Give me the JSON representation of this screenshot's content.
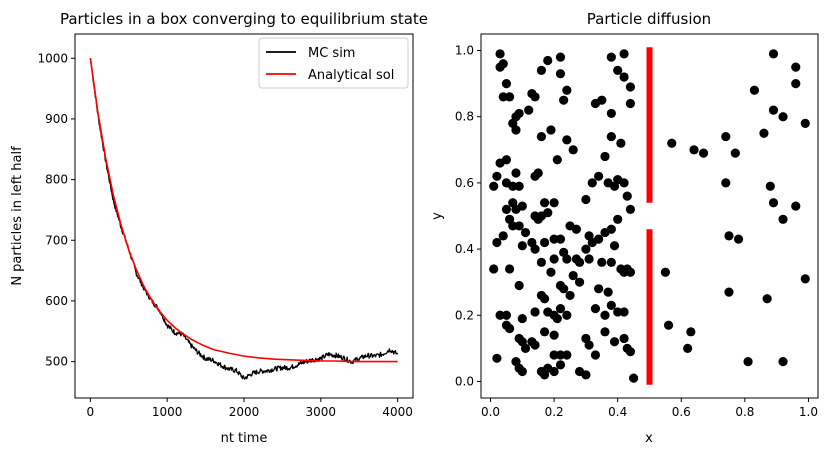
{
  "chart_data": [
    {
      "type": "line",
      "title": "Particles in a box converging to equilibrium state",
      "xlabel": "nt time",
      "ylabel": "N particles in left half",
      "xlim": [
        -200,
        4200
      ],
      "ylim": [
        440,
        1040
      ],
      "xticks": [
        0,
        1000,
        2000,
        3000,
        4000
      ],
      "yticks": [
        500,
        600,
        700,
        800,
        900,
        1000
      ],
      "xtick_labels": [
        "0",
        "1000",
        "2000",
        "3000",
        "4000"
      ],
      "ytick_labels": [
        "500",
        "600",
        "700",
        "800",
        "900",
        "1000"
      ],
      "legend_position": "top-right",
      "series": [
        {
          "name": "MC sim",
          "color": "#000000",
          "x": [
            0,
            100,
            200,
            300,
            400,
            500,
            600,
            700,
            800,
            900,
            1000,
            1100,
            1200,
            1300,
            1400,
            1500,
            1600,
            1700,
            1800,
            1900,
            2000,
            2100,
            2200,
            2300,
            2400,
            2500,
            2600,
            2700,
            2800,
            2900,
            3000,
            3100,
            3200,
            3300,
            3400,
            3500,
            3600,
            3700,
            3800,
            3900,
            4000
          ],
          "y": [
            1000,
            905,
            830,
            765,
            722,
            685,
            645,
            620,
            600,
            585,
            560,
            548,
            545,
            528,
            515,
            505,
            502,
            494,
            488,
            485,
            472,
            480,
            484,
            485,
            488,
            490,
            490,
            495,
            500,
            503,
            505,
            512,
            510,
            506,
            500,
            505,
            510,
            509,
            512,
            520,
            512
          ]
        },
        {
          "name": "Analytical sol",
          "color": "#ff0000",
          "x": [
            0,
            100,
            200,
            300,
            400,
            500,
            600,
            700,
            800,
            900,
            1000,
            1100,
            1200,
            1300,
            1400,
            1500,
            1600,
            1800,
            2000,
            2200,
            2400,
            2600,
            2800,
            3000,
            3200,
            3400,
            3600,
            3800,
            4000
          ],
          "y": [
            1000,
            909,
            835,
            774,
            725,
            684,
            651,
            623,
            601,
            583,
            568,
            556,
            546,
            538,
            531,
            525,
            520,
            514,
            509,
            506,
            504,
            503,
            502,
            501,
            501,
            500,
            500,
            500,
            500
          ]
        }
      ]
    },
    {
      "type": "scatter",
      "title": "Particle diffusion",
      "xlabel": "x",
      "ylabel": "y",
      "xlim": [
        -0.03,
        1.03
      ],
      "ylim": [
        -0.05,
        1.05
      ],
      "xticks": [
        0.0,
        0.2,
        0.4,
        0.6,
        0.8,
        1.0
      ],
      "yticks": [
        0.0,
        0.2,
        0.4,
        0.6,
        0.8,
        1.0
      ],
      "xtick_labels": [
        "0.0",
        "0.2",
        "0.4",
        "0.6",
        "0.8",
        "1.0"
      ],
      "ytick_labels": [
        "0.0",
        "0.2",
        "0.4",
        "0.6",
        "0.8",
        "1.0"
      ],
      "point_color": "#000000",
      "wall_color": "#ff0000",
      "walls": [
        {
          "x": 0.5,
          "y0": 0.54,
          "y1": 1.01
        },
        {
          "x": 0.5,
          "y0": -0.01,
          "y1": 0.46
        }
      ],
      "points": [
        [
          0.03,
          0.99
        ],
        [
          0.03,
          0.95
        ],
        [
          0.04,
          0.96
        ],
        [
          0.05,
          0.9
        ],
        [
          0.04,
          0.86
        ],
        [
          0.06,
          0.86
        ],
        [
          0.07,
          0.78
        ],
        [
          0.08,
          0.8
        ],
        [
          0.09,
          0.81
        ],
        [
          0.08,
          0.76
        ],
        [
          0.03,
          0.66
        ],
        [
          0.05,
          0.67
        ],
        [
          0.02,
          0.62
        ],
        [
          0.01,
          0.59
        ],
        [
          0.05,
          0.6
        ],
        [
          0.07,
          0.59
        ],
        [
          0.08,
          0.63
        ],
        [
          0.09,
          0.59
        ],
        [
          0.07,
          0.54
        ],
        [
          0.08,
          0.52
        ],
        [
          0.1,
          0.53
        ],
        [
          0.05,
          0.52
        ],
        [
          0.04,
          0.44
        ],
        [
          0.07,
          0.47
        ],
        [
          0.09,
          0.47
        ],
        [
          0.1,
          0.41
        ],
        [
          0.02,
          0.42
        ],
        [
          0.06,
          0.49
        ],
        [
          0.01,
          0.34
        ],
        [
          0.06,
          0.34
        ],
        [
          0.09,
          0.29
        ],
        [
          0.05,
          0.2
        ],
        [
          0.03,
          0.2
        ],
        [
          0.05,
          0.17
        ],
        [
          0.06,
          0.16
        ],
        [
          0.1,
          0.19
        ],
        [
          0.09,
          0.13
        ],
        [
          0.1,
          0.12
        ],
        [
          0.02,
          0.07
        ],
        [
          0.08,
          0.06
        ],
        [
          0.09,
          0.04
        ],
        [
          0.1,
          0.03
        ],
        [
          0.13,
          0.87
        ],
        [
          0.14,
          0.86
        ],
        [
          0.12,
          0.82
        ],
        [
          0.16,
          0.74
        ],
        [
          0.16,
          0.94
        ],
        [
          0.18,
          0.97
        ],
        [
          0.22,
          0.98
        ],
        [
          0.19,
          0.76
        ],
        [
          0.22,
          0.93
        ],
        [
          0.24,
          0.88
        ],
        [
          0.23,
          0.85
        ],
        [
          0.26,
          0.7
        ],
        [
          0.24,
          0.73
        ],
        [
          0.21,
          0.67
        ],
        [
          0.14,
          0.62
        ],
        [
          0.15,
          0.63
        ],
        [
          0.17,
          0.54
        ],
        [
          0.2,
          0.54
        ],
        [
          0.18,
          0.51
        ],
        [
          0.16,
          0.5
        ],
        [
          0.15,
          0.49
        ],
        [
          0.14,
          0.5
        ],
        [
          0.11,
          0.45
        ],
        [
          0.13,
          0.42
        ],
        [
          0.14,
          0.4
        ],
        [
          0.17,
          0.42
        ],
        [
          0.2,
          0.43
        ],
        [
          0.22,
          0.43
        ],
        [
          0.25,
          0.47
        ],
        [
          0.27,
          0.46
        ],
        [
          0.23,
          0.39
        ],
        [
          0.2,
          0.37
        ],
        [
          0.24,
          0.37
        ],
        [
          0.27,
          0.37
        ],
        [
          0.16,
          0.36
        ],
        [
          0.19,
          0.33
        ],
        [
          0.22,
          0.29
        ],
        [
          0.23,
          0.28
        ],
        [
          0.26,
          0.32
        ],
        [
          0.28,
          0.3
        ],
        [
          0.25,
          0.26
        ],
        [
          0.16,
          0.26
        ],
        [
          0.17,
          0.25
        ],
        [
          0.14,
          0.21
        ],
        [
          0.18,
          0.21
        ],
        [
          0.2,
          0.2
        ],
        [
          0.22,
          0.22
        ],
        [
          0.24,
          0.2
        ],
        [
          0.21,
          0.19
        ],
        [
          0.17,
          0.15
        ],
        [
          0.2,
          0.14
        ],
        [
          0.14,
          0.11
        ],
        [
          0.13,
          0.12
        ],
        [
          0.11,
          0.1
        ],
        [
          0.2,
          0.08
        ],
        [
          0.22,
          0.08
        ],
        [
          0.24,
          0.08
        ],
        [
          0.2,
          0.03
        ],
        [
          0.16,
          0.03
        ],
        [
          0.17,
          0.02
        ],
        [
          0.18,
          0.04
        ],
        [
          0.22,
          0.05
        ],
        [
          0.28,
          0.03
        ],
        [
          0.3,
          0.02
        ],
        [
          0.28,
          0.36
        ],
        [
          0.31,
          0.44
        ],
        [
          0.3,
          0.55
        ],
        [
          0.32,
          0.6
        ],
        [
          0.34,
          0.62
        ],
        [
          0.37,
          0.6
        ],
        [
          0.36,
          0.68
        ],
        [
          0.38,
          0.74
        ],
        [
          0.38,
          0.81
        ],
        [
          0.35,
          0.85
        ],
        [
          0.33,
          0.84
        ],
        [
          0.38,
          0.98
        ],
        [
          0.42,
          0.99
        ],
        [
          0.4,
          0.94
        ],
        [
          0.42,
          0.92
        ],
        [
          0.44,
          0.89
        ],
        [
          0.44,
          0.84
        ],
        [
          0.41,
          0.72
        ],
        [
          0.4,
          0.61
        ],
        [
          0.39,
          0.59
        ],
        [
          0.42,
          0.6
        ],
        [
          0.43,
          0.56
        ],
        [
          0.44,
          0.52
        ],
        [
          0.4,
          0.49
        ],
        [
          0.38,
          0.46
        ],
        [
          0.36,
          0.45
        ],
        [
          0.34,
          0.43
        ],
        [
          0.32,
          0.42
        ],
        [
          0.3,
          0.4
        ],
        [
          0.31,
          0.37
        ],
        [
          0.35,
          0.36
        ],
        [
          0.38,
          0.36
        ],
        [
          0.39,
          0.41
        ],
        [
          0.41,
          0.34
        ],
        [
          0.42,
          0.33
        ],
        [
          0.43,
          0.34
        ],
        [
          0.44,
          0.33
        ],
        [
          0.34,
          0.28
        ],
        [
          0.37,
          0.27
        ],
        [
          0.33,
          0.22
        ],
        [
          0.36,
          0.2
        ],
        [
          0.38,
          0.23
        ],
        [
          0.4,
          0.21
        ],
        [
          0.42,
          0.21
        ],
        [
          0.36,
          0.15
        ],
        [
          0.3,
          0.13
        ],
        [
          0.31,
          0.11
        ],
        [
          0.33,
          0.08
        ],
        [
          0.39,
          0.12
        ],
        [
          0.42,
          0.13
        ],
        [
          0.43,
          0.1
        ],
        [
          0.44,
          0.09
        ],
        [
          0.45,
          0.01
        ],
        [
          0.57,
          0.72
        ],
        [
          0.64,
          0.7
        ],
        [
          0.67,
          0.69
        ],
        [
          0.74,
          0.74
        ],
        [
          0.77,
          0.69
        ],
        [
          0.74,
          0.6
        ],
        [
          0.83,
          0.88
        ],
        [
          0.86,
          0.75
        ],
        [
          0.89,
          0.99
        ],
        [
          0.89,
          0.82
        ],
        [
          0.92,
          0.8
        ],
        [
          0.96,
          0.95
        ],
        [
          0.96,
          0.9
        ],
        [
          0.99,
          0.78
        ],
        [
          0.88,
          0.59
        ],
        [
          0.89,
          0.54
        ],
        [
          0.92,
          0.49
        ],
        [
          0.96,
          0.53
        ],
        [
          0.75,
          0.44
        ],
        [
          0.78,
          0.43
        ],
        [
          0.55,
          0.33
        ],
        [
          0.75,
          0.27
        ],
        [
          0.87,
          0.25
        ],
        [
          0.56,
          0.17
        ],
        [
          0.63,
          0.15
        ],
        [
          0.62,
          0.1
        ],
        [
          0.81,
          0.06
        ],
        [
          0.92,
          0.06
        ],
        [
          0.99,
          0.31
        ]
      ]
    }
  ]
}
